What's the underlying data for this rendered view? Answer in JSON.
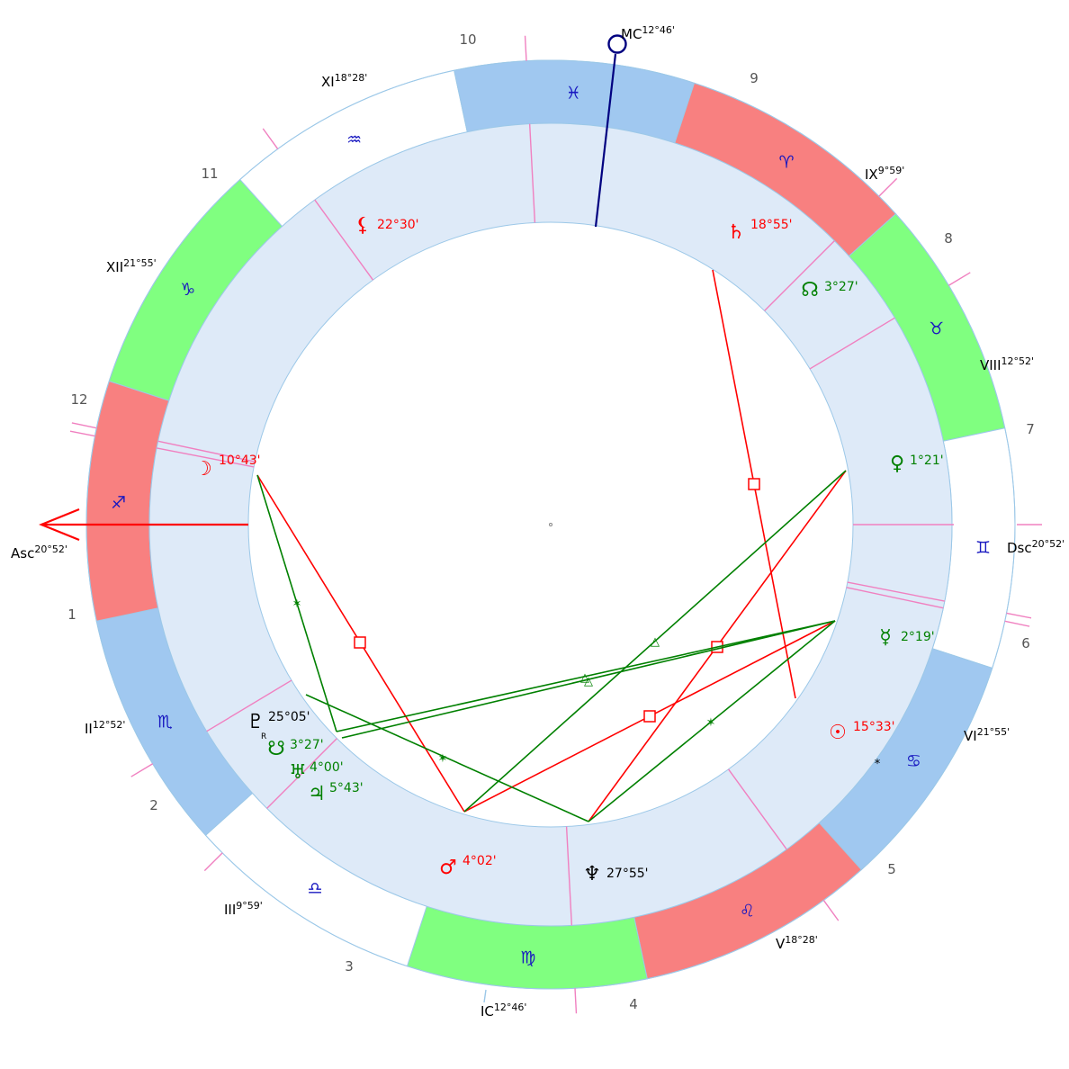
{
  "colors": {
    "fire": "#f88080",
    "earth": "#80ff80",
    "air": "#ffffff",
    "water": "#a0c8f0",
    "ring": "#deeaf8",
    "ring_stroke": "#9cc8e8",
    "cusp": "#f080c0",
    "red": "#ff0000",
    "green": "#008000",
    "black": "#000000",
    "blue": "#000080"
  },
  "angles": {
    "asc": {
      "name": "Asc",
      "degree": "20°52'"
    },
    "dsc": {
      "name": "Dsc",
      "degree": "20°52'"
    },
    "mc": {
      "name": "MC",
      "degree": "12°46'"
    },
    "ic": {
      "name": "IC",
      "degree": "12°46'"
    }
  },
  "house_cusps": [
    {
      "label": "II",
      "degree": "12°52'"
    },
    {
      "label": "III",
      "degree": "9°59'"
    },
    {
      "label": "V",
      "degree": "18°28'"
    },
    {
      "label": "VI",
      "degree": "21°55'"
    },
    {
      "label": "VIII",
      "degree": "12°52'"
    },
    {
      "label": "IX",
      "degree": "9°59'"
    },
    {
      "label": "XI",
      "degree": "18°28'"
    },
    {
      "label": "XII",
      "degree": "21°55'"
    }
  ],
  "house_numbers": [
    "1",
    "2",
    "3",
    "4",
    "5",
    "6",
    "7",
    "8",
    "9",
    "10",
    "11",
    "12"
  ],
  "signs": [
    {
      "name": "Aries",
      "glyph": "♈",
      "element": "fire"
    },
    {
      "name": "Taurus",
      "glyph": "♉",
      "element": "earth"
    },
    {
      "name": "Gemini",
      "glyph": "♊",
      "element": "air"
    },
    {
      "name": "Cancer",
      "glyph": "♋",
      "element": "water"
    },
    {
      "name": "Leo",
      "glyph": "♌",
      "element": "fire"
    },
    {
      "name": "Virgo",
      "glyph": "♍",
      "element": "earth"
    },
    {
      "name": "Libra",
      "glyph": "♎",
      "element": "air"
    },
    {
      "name": "Scorpio",
      "glyph": "♏",
      "element": "water"
    },
    {
      "name": "Sagittarius",
      "glyph": "♐",
      "element": "fire"
    },
    {
      "name": "Capricorn",
      "glyph": "♑",
      "element": "earth"
    },
    {
      "name": "Aquarius",
      "glyph": "♒",
      "element": "air"
    },
    {
      "name": "Pisces",
      "glyph": "♓",
      "element": "water"
    }
  ],
  "planets": [
    {
      "key": "lilith",
      "glyph": "⚸",
      "degree": "22°30'",
      "color": "#ff0000",
      "retro": ""
    },
    {
      "key": "saturn",
      "glyph": "♄",
      "degree": "18°55'",
      "color": "#ff0000",
      "retro": ""
    },
    {
      "key": "northnode",
      "glyph": "☊",
      "degree": "3°27'",
      "color": "#008000",
      "retro": ""
    },
    {
      "key": "moon",
      "glyph": "☽",
      "degree": "10°43'",
      "color": "#ff0000",
      "retro": ""
    },
    {
      "key": "venus",
      "glyph": "♀",
      "degree": "1°21'",
      "color": "#008000",
      "retro": ""
    },
    {
      "key": "mercury",
      "glyph": "☿",
      "degree": "2°19'",
      "color": "#008000",
      "retro": ""
    },
    {
      "key": "sun",
      "glyph": "☉",
      "degree": "15°33'",
      "color": "#ff0000",
      "retro": ""
    },
    {
      "key": "pluto",
      "glyph": "♇",
      "degree": "25°05'",
      "color": "#000000",
      "retro": "R"
    },
    {
      "key": "southnode",
      "glyph": "☋",
      "degree": "3°27'",
      "color": "#008000",
      "retro": ""
    },
    {
      "key": "uranus",
      "glyph": "♅",
      "degree": "4°00'",
      "color": "#008000",
      "retro": ""
    },
    {
      "key": "jupiter",
      "glyph": "♃",
      "degree": "5°43'",
      "color": "#008000",
      "retro": ""
    },
    {
      "key": "mars",
      "glyph": "♂",
      "degree": "4°02'",
      "color": "#ff0000",
      "retro": ""
    },
    {
      "key": "neptune",
      "glyph": "♆",
      "degree": "27°55'",
      "color": "#000000",
      "retro": ""
    }
  ],
  "aspects": [
    {
      "type": "square",
      "symbol": "□",
      "color": "#ff0000"
    },
    {
      "type": "square",
      "symbol": "□",
      "color": "#ff0000"
    },
    {
      "type": "square",
      "symbol": "□",
      "color": "#ff0000"
    },
    {
      "type": "square",
      "symbol": "□",
      "color": "#ff0000"
    },
    {
      "type": "sextile",
      "symbol": "✶",
      "color": "#008000"
    },
    {
      "type": "sextile",
      "symbol": "✶",
      "color": "#008000"
    },
    {
      "type": "sextile",
      "symbol": "✶",
      "color": "#008000"
    },
    {
      "type": "trine",
      "symbol": "△",
      "color": "#008000"
    },
    {
      "type": "trine",
      "symbol": "△",
      "color": "#008000"
    },
    {
      "type": "trine",
      "symbol": "△",
      "color": "#008000"
    }
  ],
  "misc": {
    "star_marker": "*"
  }
}
